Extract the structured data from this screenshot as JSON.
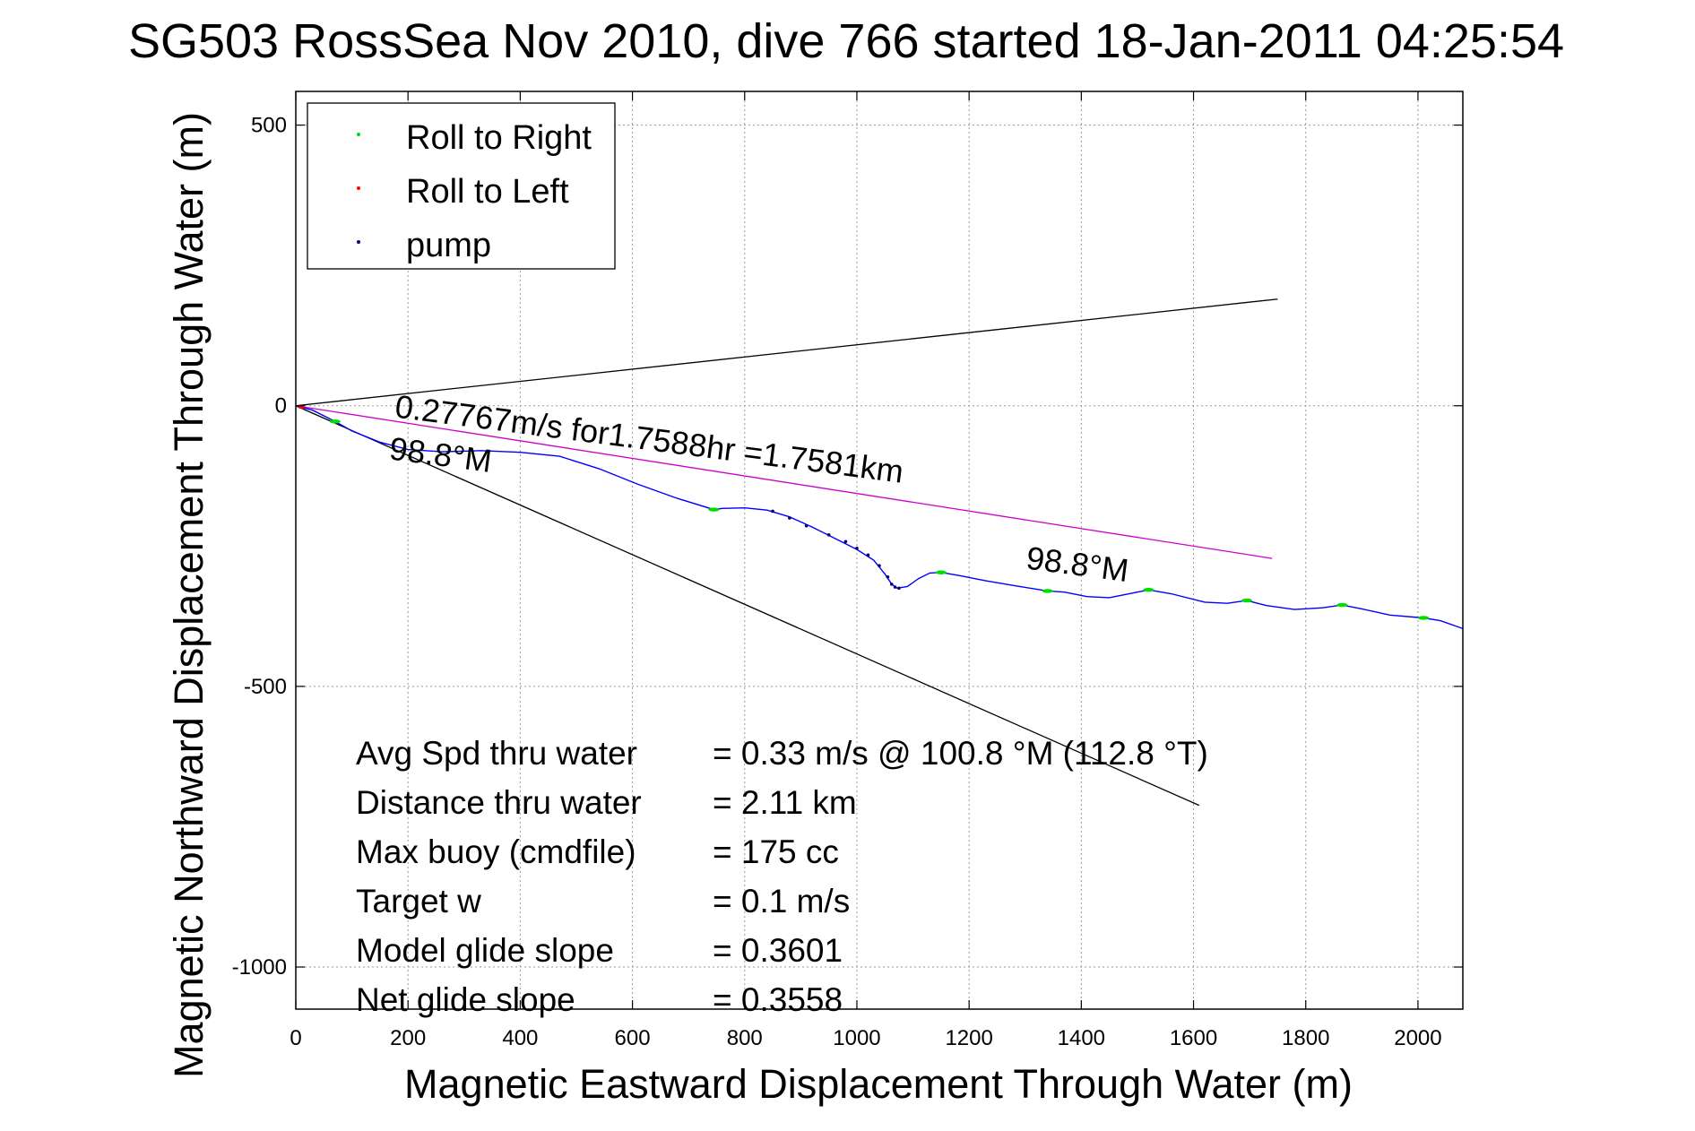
{
  "chart_data": {
    "type": "line",
    "title": "SG503 RossSea Nov 2010, dive 766 started 18-Jan-2011 04:25:54",
    "xlabel": "Magnetic Eastward Displacement Through Water (m)",
    "ylabel": "Magnetic Northward Displacement Through Water (m)",
    "xlim": [
      0,
      2080
    ],
    "ylim": [
      -1075,
      560
    ],
    "xticks": [
      0,
      200,
      400,
      600,
      800,
      1000,
      1200,
      1400,
      1600,
      1800,
      2000
    ],
    "yticks": [
      -1000,
      -500,
      0,
      500
    ],
    "grid": true,
    "legend": {
      "position": "top-left",
      "entries": [
        {
          "label": "Roll to Right",
          "color": "#00dd00"
        },
        {
          "label": "Roll to Left",
          "color": "#ff0000"
        },
        {
          "label": "pump",
          "color": "#000080"
        }
      ]
    },
    "track": {
      "color": "#0000ff",
      "points": [
        [
          0,
          0
        ],
        [
          30,
          -8
        ],
        [
          70,
          -28
        ],
        [
          100,
          -45
        ],
        [
          150,
          -65
        ],
        [
          200,
          -78
        ],
        [
          260,
          -82
        ],
        [
          330,
          -80
        ],
        [
          400,
          -83
        ],
        [
          470,
          -90
        ],
        [
          540,
          -112
        ],
        [
          610,
          -140
        ],
        [
          680,
          -165
        ],
        [
          745,
          -185
        ],
        [
          760,
          -183
        ],
        [
          800,
          -182
        ],
        [
          840,
          -186
        ],
        [
          880,
          -198
        ],
        [
          920,
          -216
        ],
        [
          960,
          -236
        ],
        [
          1000,
          -256
        ],
        [
          1030,
          -275
        ],
        [
          1050,
          -300
        ],
        [
          1062,
          -318
        ],
        [
          1072,
          -325
        ],
        [
          1090,
          -322
        ],
        [
          1110,
          -308
        ],
        [
          1130,
          -298
        ],
        [
          1150,
          -297
        ],
        [
          1180,
          -302
        ],
        [
          1230,
          -312
        ],
        [
          1290,
          -322
        ],
        [
          1340,
          -330
        ],
        [
          1370,
          -332
        ],
        [
          1410,
          -340
        ],
        [
          1450,
          -342
        ],
        [
          1490,
          -334
        ],
        [
          1520,
          -328
        ],
        [
          1560,
          -335
        ],
        [
          1620,
          -350
        ],
        [
          1660,
          -352
        ],
        [
          1695,
          -347
        ],
        [
          1730,
          -356
        ],
        [
          1780,
          -363
        ],
        [
          1830,
          -360
        ],
        [
          1865,
          -355
        ],
        [
          1900,
          -362
        ],
        [
          1950,
          -373
        ],
        [
          2010,
          -378
        ],
        [
          2040,
          -383
        ],
        [
          2080,
          -397
        ]
      ]
    },
    "roll_right_points": [
      [
        70,
        -28
      ],
      [
        745,
        -185
      ],
      [
        1150,
        -297
      ],
      [
        1340,
        -330
      ],
      [
        1520,
        -328
      ],
      [
        1695,
        -347
      ],
      [
        1865,
        -355
      ],
      [
        2010,
        -378
      ]
    ],
    "roll_left_points": [
      [
        8,
        -2
      ],
      [
        12,
        -3
      ]
    ],
    "pump_points": [
      [
        850,
        -188
      ],
      [
        880,
        -200
      ],
      [
        910,
        -214
      ],
      [
        950,
        -230
      ],
      [
        980,
        -242
      ],
      [
        1000,
        -254
      ],
      [
        1020,
        -266
      ],
      [
        1040,
        -285
      ],
      [
        1055,
        -305
      ],
      [
        1062,
        -318
      ],
      [
        1068,
        -323
      ],
      [
        1075,
        -325
      ]
    ],
    "reference_lines": [
      {
        "name": "heading-upper",
        "color": "#000000",
        "x": [
          0,
          1750
        ],
        "y": [
          0,
          190
        ]
      },
      {
        "name": "heading-lower",
        "color": "#000000",
        "x": [
          0,
          1610
        ],
        "y": [
          0,
          -712
        ]
      },
      {
        "name": "net-displacement",
        "color": "#cc00cc",
        "x": [
          0,
          1740
        ],
        "y": [
          0,
          -272
        ]
      }
    ],
    "annotations": [
      {
        "text": "0.27767m/s for1.7588hr =1.7581km",
        "x": 175,
        "y": -20,
        "rotate": 7.4
      },
      {
        "text": "98.8°M",
        "x": 165,
        "y": -95,
        "rotate": 7.4
      },
      {
        "text": "98.8°M",
        "x": 1300,
        "y": -290,
        "rotate": 7.4
      }
    ],
    "stats": [
      {
        "label": "Avg Spd thru water",
        "value": "=  0.33 m/s @ 100.8  °M (112.8 °T)"
      },
      {
        "label": "Distance thru water",
        "value": "=  2.11 km"
      },
      {
        "label": "Max buoy (cmdfile)",
        "value": "= 175 cc"
      },
      {
        "label": "Target w",
        "value": "= 0.1 m/s"
      },
      {
        "label": "Model glide slope",
        "value": "= 0.3601"
      },
      {
        "label": "Net glide slope",
        "value": "= 0.3558"
      }
    ]
  }
}
